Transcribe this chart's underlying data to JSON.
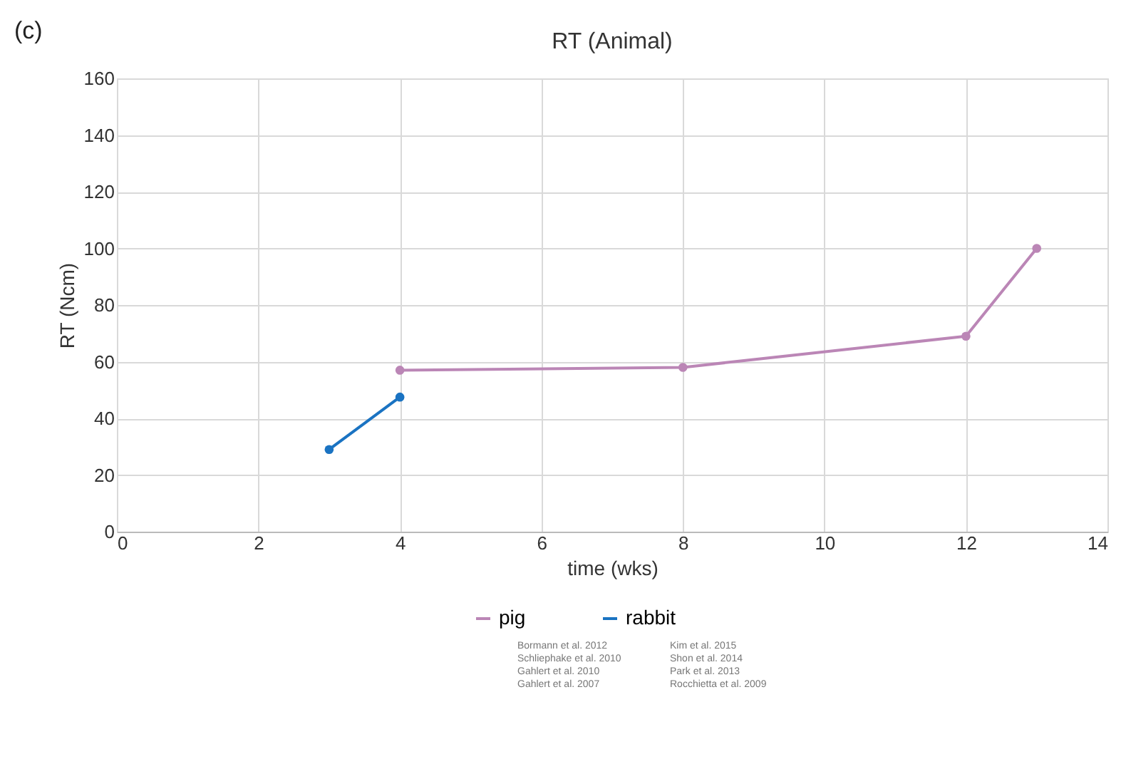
{
  "chart_data": {
    "type": "line",
    "title": "RT (Animal)",
    "xlabel": "time (wks)",
    "ylabel": "RT (Ncm)",
    "xlim": [
      0,
      14
    ],
    "xticks": [
      0,
      2,
      4,
      6,
      8,
      10,
      12,
      14
    ],
    "ylim": [
      0,
      160
    ],
    "yticks": [
      0,
      20,
      40,
      60,
      80,
      100,
      120,
      140,
      160
    ],
    "grid": true,
    "legend": "bottom",
    "marker": "circle",
    "line_style": "solid",
    "series": [
      {
        "name": "pig",
        "color": "#bb86b6",
        "x": [
          4,
          8,
          12,
          13
        ],
        "values": [
          57,
          58,
          69,
          100
        ]
      },
      {
        "name": "rabbit",
        "color": "#1a73c2",
        "x": [
          3,
          4
        ],
        "values": [
          29,
          47.5
        ]
      }
    ],
    "annotations": [
      "(c)",
      "Bormann et al. 2012",
      "Schliephake et al. 2010",
      "Gahlert et al. 2010",
      "Gahlert et al. 2007",
      "Kim et al. 2015",
      "Shon et al. 2014",
      "Park et al. 2013",
      "Rocchietta et al. 2009"
    ]
  }
}
